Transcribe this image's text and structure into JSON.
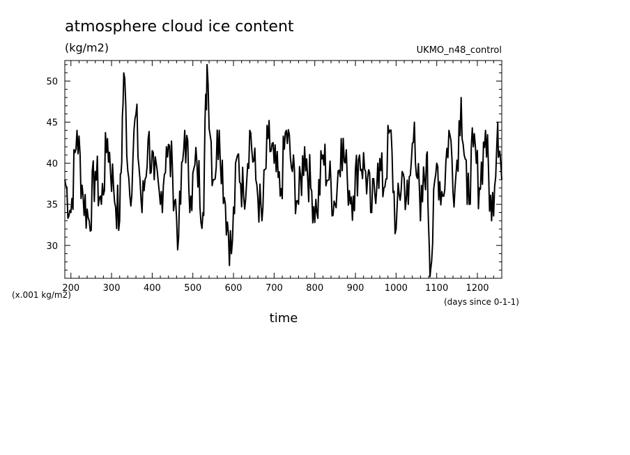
{
  "chart_data": {
    "type": "line",
    "title": "atmosphere cloud ice content",
    "units_label": "(kg/m2)",
    "source_label": "UKMO_n48_control",
    "xlabel": "time",
    "x_units_note": "(days since 0-1-1)",
    "y_scale_note": "(x.001 kg/m2)",
    "xlim": [
      185,
      1260
    ],
    "ylim": [
      26,
      52.5
    ],
    "x_ticks": [
      200,
      300,
      400,
      500,
      600,
      700,
      800,
      900,
      1000,
      1100,
      1200
    ],
    "y_ticks": [
      30,
      35,
      40,
      45,
      50
    ],
    "grid": false,
    "line_color": "#000000",
    "series": [
      {
        "x": [
          185,
          200,
          215,
          230,
          245,
          260,
          275,
          290,
          305,
          320,
          330,
          345,
          360,
          375,
          390,
          405,
          420,
          435,
          450,
          465,
          480,
          495,
          510,
          525,
          535,
          550,
          565,
          580,
          595,
          610,
          625,
          640,
          655,
          670,
          685,
          700,
          715,
          730,
          745,
          760,
          775,
          790,
          805,
          820,
          835,
          850,
          865,
          880,
          895,
          910,
          925,
          940,
          955,
          970,
          985,
          1000,
          1015,
          1030,
          1045,
          1060,
          1075,
          1085,
          1100,
          1115,
          1130,
          1145,
          1160,
          1175,
          1190,
          1205,
          1220,
          1235,
          1250,
          1260
        ],
        "values": [
          38,
          34,
          44,
          36,
          33,
          39,
          35,
          43,
          37,
          33,
          51,
          36,
          46,
          34,
          43,
          38,
          35,
          42,
          39,
          31,
          44,
          36,
          40,
          34,
          52,
          38,
          44,
          35,
          29,
          41,
          36,
          44,
          38,
          33,
          43,
          40,
          36,
          44,
          39,
          35,
          42,
          37,
          34,
          41,
          38,
          35,
          43,
          38,
          36,
          41,
          39,
          34,
          40,
          37,
          44,
          32,
          39,
          35,
          45,
          33,
          41,
          27,
          40,
          36,
          44,
          37,
          48,
          35,
          42,
          37,
          44,
          33,
          45,
          38
        ]
      }
    ]
  }
}
